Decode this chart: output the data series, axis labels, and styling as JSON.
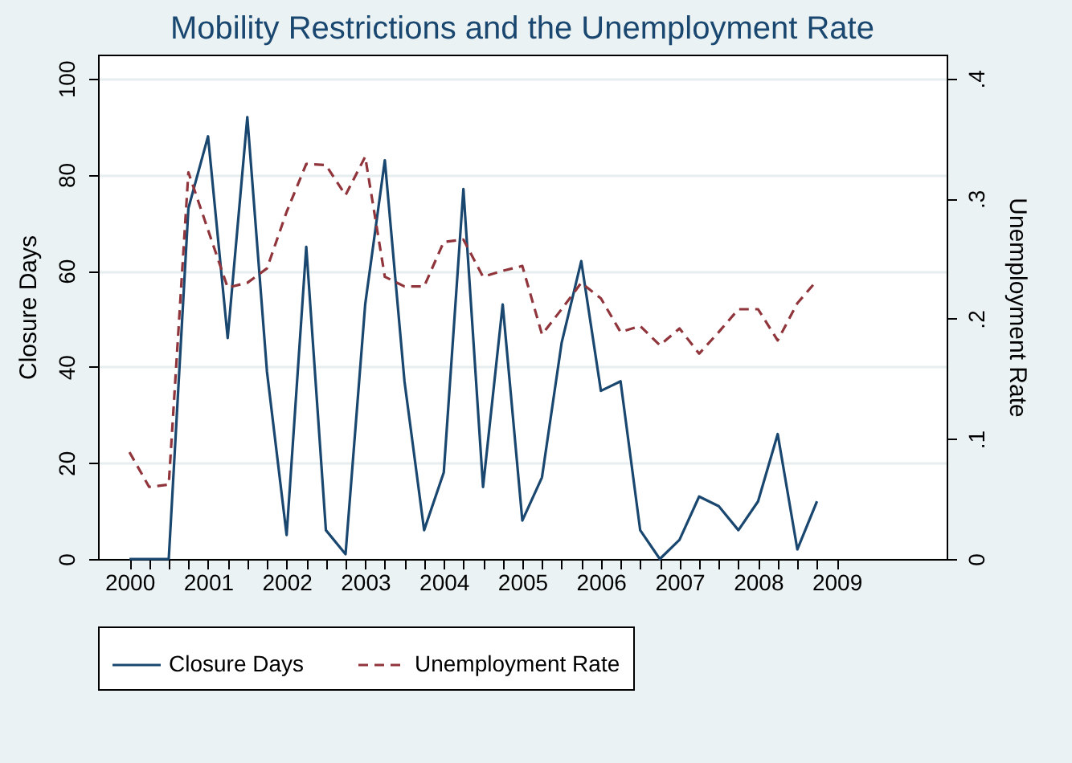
{
  "chart_data": {
    "type": "line",
    "title": "Mobility Restrictions and the Unemployment Rate",
    "ylabel": "Closure Days",
    "y2label": "Unemployment Rate",
    "x": [
      2000,
      2000.25,
      2000.5,
      2000.75,
      2001,
      2001.25,
      2001.5,
      2001.75,
      2002,
      2002.25,
      2002.5,
      2002.75,
      2003,
      2003.25,
      2003.5,
      2003.75,
      2004,
      2004.25,
      2004.5,
      2004.75,
      2005,
      2005.25,
      2005.5,
      2005.75,
      2006,
      2006.25,
      2006.5,
      2006.75,
      2007,
      2007.25,
      2007.5,
      2007.75,
      2008,
      2008.25,
      2008.5,
      2008.75
    ],
    "series": [
      {
        "name": "Closure Days",
        "color": "#1a476f",
        "line_style": "solid",
        "values": [
          0,
          0,
          0,
          73,
          88,
          46,
          92,
          39,
          5,
          65,
          6,
          1,
          53,
          83,
          37,
          6,
          18,
          77,
          15,
          53,
          8,
          17,
          45,
          62,
          35,
          37,
          6,
          0,
          4,
          13,
          11,
          6,
          12,
          26,
          2,
          12
        ]
      },
      {
        "name": "Unemployment Rate",
        "color": "#90353b",
        "line_style": "dashed",
        "axis": "y2",
        "values": [
          0.089,
          0.06,
          0.062,
          0.322,
          0.274,
          0.226,
          0.23,
          0.242,
          0.289,
          0.329,
          0.328,
          0.303,
          0.335,
          0.235,
          0.227,
          0.227,
          0.264,
          0.266,
          0.235,
          0.24,
          0.244,
          0.187,
          0.208,
          0.23,
          0.217,
          0.189,
          0.194,
          0.178,
          0.192,
          0.171,
          0.189,
          0.208,
          0.208,
          0.182,
          0.213,
          0.232
        ]
      }
    ],
    "xlim": [
      1999.6,
      2010.4
    ],
    "xticks": [
      2000,
      {
        "value": 2000.25,
        "label": null
      },
      {
        "value": 2000.5,
        "label": null
      },
      {
        "value": 2000.75,
        "label": null
      },
      2001,
      {
        "value": 2001.25,
        "label": null
      },
      {
        "value": 2001.5,
        "label": null
      },
      {
        "value": 2001.75,
        "label": null
      },
      2002,
      {
        "value": 2002.25,
        "label": null
      },
      {
        "value": 2002.5,
        "label": null
      },
      {
        "value": 2002.75,
        "label": null
      },
      2003,
      {
        "value": 2003.25,
        "label": null
      },
      {
        "value": 2003.5,
        "label": null
      },
      {
        "value": 2003.75,
        "label": null
      },
      2004,
      {
        "value": 2004.25,
        "label": null
      },
      {
        "value": 2004.5,
        "label": null
      },
      {
        "value": 2004.75,
        "label": null
      },
      2005,
      {
        "value": 2005.25,
        "label": null
      },
      {
        "value": 2005.5,
        "label": null
      },
      {
        "value": 2005.75,
        "label": null
      },
      2006,
      {
        "value": 2006.25,
        "label": null
      },
      {
        "value": 2006.5,
        "label": null
      },
      {
        "value": 2006.75,
        "label": null
      },
      2007,
      {
        "value": 2007.25,
        "label": null
      },
      {
        "value": 2007.5,
        "label": null
      },
      {
        "value": 2007.75,
        "label": null
      },
      2008,
      {
        "value": 2008.25,
        "label": null
      },
      {
        "value": 2008.5,
        "label": null
      },
      {
        "value": 2008.75,
        "label": null
      },
      2009
    ],
    "ylim": [
      0,
      105
    ],
    "yticks": [
      0,
      20,
      40,
      60,
      80,
      100
    ],
    "y2lim": [
      0,
      0.42
    ],
    "y2ticks": [
      0,
      {
        "value": 0.1,
        "label": ".1"
      },
      {
        "value": 0.2,
        "label": ".2"
      },
      {
        "value": 0.3,
        "label": ".3"
      },
      {
        "value": 0.4,
        "label": ".4"
      }
    ],
    "grid": "y",
    "legend": "bottom"
  }
}
